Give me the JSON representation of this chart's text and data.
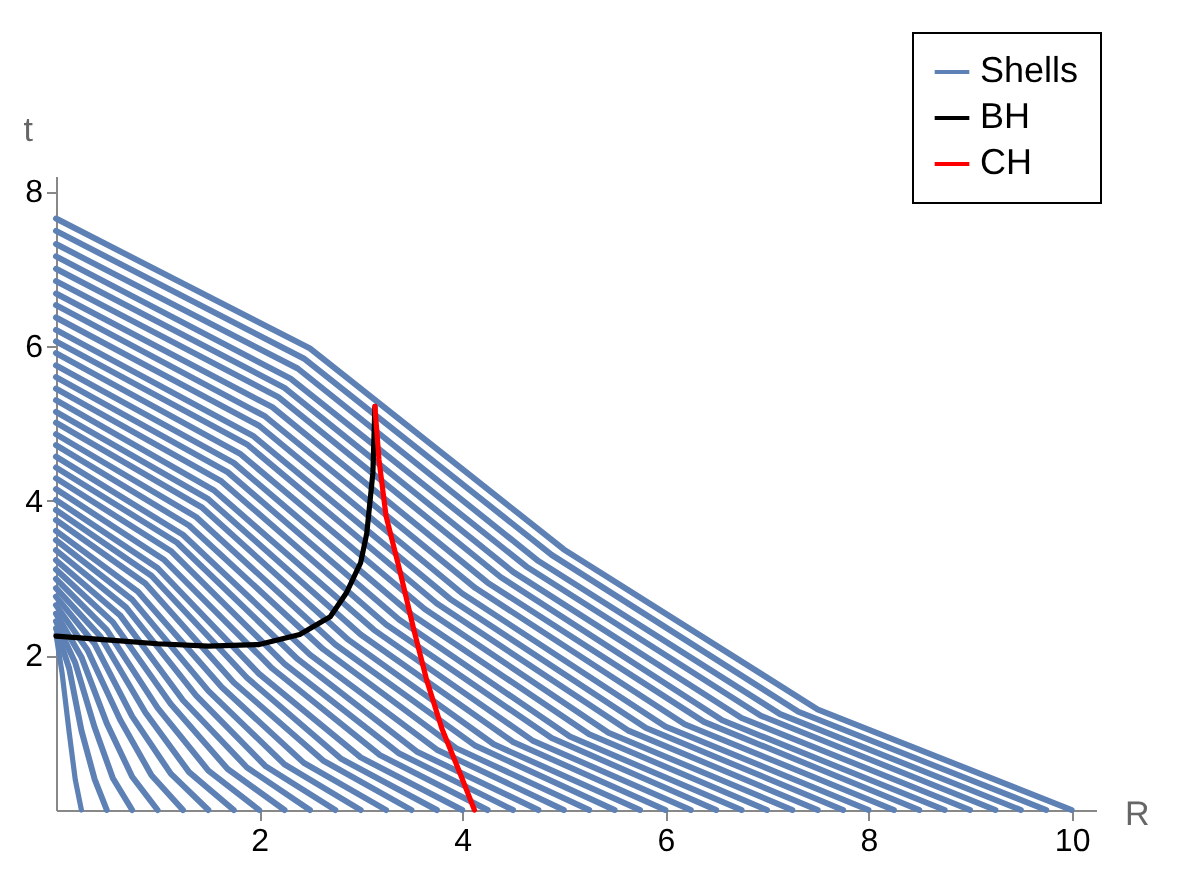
{
  "chart_data": {
    "type": "line",
    "xlabel": "R",
    "ylabel": "t",
    "xlim": [
      0,
      10.24
    ],
    "ylim": [
      0,
      8.2
    ],
    "xticks": [
      2,
      4,
      6,
      8,
      10
    ],
    "yticks": [
      2,
      4,
      6,
      8
    ],
    "grid": false,
    "legend": "top right",
    "series": [
      {
        "name": "Shells",
        "color": "#5e81b5",
        "x": [
          0.25,
          0.19,
          0.13,
          0.06,
          0
        ],
        "values": [
          0,
          0.39,
          1.0,
          1.77,
          2.27
        ]
      },
      {
        "color": "#5e81b5",
        "x": [
          0.5,
          0.38,
          0.25,
          0.13,
          0
        ],
        "values": [
          0,
          0.4,
          1.03,
          1.83,
          2.35
        ]
      },
      {
        "color": "#5e81b5",
        "x": [
          0.75,
          0.56,
          0.38,
          0.19,
          0
        ],
        "values": [
          0,
          0.41,
          1.07,
          1.9,
          2.44
        ]
      },
      {
        "color": "#5e81b5",
        "x": [
          1,
          0.75,
          0.5,
          0.25,
          0
        ],
        "values": [
          0,
          0.43,
          1.12,
          1.98,
          2.54
        ]
      },
      {
        "color": "#5e81b5",
        "x": [
          1.25,
          0.94,
          0.63,
          0.31,
          0
        ],
        "values": [
          0,
          0.45,
          1.17,
          2.07,
          2.65
        ]
      },
      {
        "color": "#5e81b5",
        "x": [
          1.5,
          1.13,
          0.75,
          0.38,
          0
        ],
        "values": [
          0,
          0.47,
          1.21,
          2.15,
          2.76
        ]
      },
      {
        "color": "#5e81b5",
        "x": [
          1.75,
          1.31,
          0.88,
          0.44,
          0
        ],
        "values": [
          0,
          0.49,
          1.26,
          2.24,
          2.87
        ]
      },
      {
        "color": "#5e81b5",
        "x": [
          2,
          1.5,
          1,
          0.5,
          0
        ],
        "values": [
          0,
          0.51,
          1.32,
          2.33,
          2.99
        ]
      },
      {
        "color": "#5e81b5",
        "x": [
          2.25,
          1.69,
          1.13,
          0.56,
          0
        ],
        "values": [
          0,
          0.53,
          1.37,
          2.43,
          3.11
        ]
      },
      {
        "color": "#5e81b5",
        "x": [
          2.5,
          1.88,
          1.25,
          0.63,
          0
        ],
        "values": [
          0,
          0.55,
          1.42,
          2.52,
          3.23
        ]
      },
      {
        "color": "#5e81b5",
        "x": [
          2.75,
          2.06,
          1.38,
          0.69,
          0
        ],
        "values": [
          0,
          0.57,
          1.48,
          2.62,
          3.36
        ]
      },
      {
        "color": "#5e81b5",
        "x": [
          3,
          2.25,
          1.5,
          0.75,
          0
        ],
        "values": [
          0,
          0.59,
          1.54,
          2.72,
          3.49
        ]
      },
      {
        "color": "#5e81b5",
        "x": [
          3.25,
          2.44,
          1.63,
          0.81,
          0
        ],
        "values": [
          0,
          0.61,
          1.59,
          2.82,
          3.61
        ]
      },
      {
        "color": "#5e81b5",
        "x": [
          3.5,
          2.63,
          1.75,
          0.88,
          0
        ],
        "values": [
          0,
          0.64,
          1.65,
          2.93,
          3.75
        ]
      },
      {
        "color": "#5e81b5",
        "x": [
          3.75,
          2.81,
          1.88,
          0.94,
          0
        ],
        "values": [
          0,
          0.66,
          1.71,
          3.03,
          3.88
        ]
      },
      {
        "color": "#5e81b5",
        "x": [
          4,
          3,
          2,
          1,
          0
        ],
        "values": [
          0,
          0.68,
          1.76,
          3.13,
          4.01
        ]
      },
      {
        "color": "#5e81b5",
        "x": [
          4.25,
          3.19,
          2.13,
          1.06,
          0
        ],
        "values": [
          0,
          0.71,
          1.83,
          3.24,
          4.15
        ]
      },
      {
        "color": "#5e81b5",
        "x": [
          4.5,
          3.38,
          2.25,
          1.13,
          0
        ],
        "values": [
          0,
          0.73,
          1.89,
          3.35,
          4.29
        ]
      },
      {
        "color": "#5e81b5",
        "x": [
          4.75,
          3.56,
          2.38,
          1.19,
          0
        ],
        "values": [
          0,
          0.75,
          1.95,
          3.46,
          4.43
        ]
      },
      {
        "color": "#5e81b5",
        "x": [
          5,
          3.75,
          2.5,
          1.25,
          0
        ],
        "values": [
          0,
          0.78,
          2.01,
          3.56,
          4.57
        ]
      },
      {
        "color": "#5e81b5",
        "x": [
          5.25,
          3.94,
          2.63,
          1.31,
          0
        ],
        "values": [
          0,
          0.8,
          2.08,
          3.68,
          4.72
        ]
      },
      {
        "color": "#5e81b5",
        "x": [
          5.5,
          4.13,
          2.75,
          1.38,
          0
        ],
        "values": [
          0,
          0.83,
          2.14,
          3.79,
          4.86
        ]
      },
      {
        "color": "#5e81b5",
        "x": [
          5.75,
          4.31,
          2.88,
          1.44,
          0
        ],
        "values": [
          0,
          0.85,
          2.2,
          3.91,
          5.01
        ]
      },
      {
        "color": "#5e81b5",
        "x": [
          6,
          4.5,
          3,
          1.5,
          0
        ],
        "values": [
          0,
          0.88,
          2.27,
          4.02,
          5.15
        ]
      },
      {
        "color": "#5e81b5",
        "x": [
          6.25,
          4.69,
          3.13,
          1.56,
          0
        ],
        "values": [
          0,
          0.9,
          2.33,
          4.13,
          5.3
        ]
      },
      {
        "color": "#5e81b5",
        "x": [
          6.5,
          4.88,
          3.25,
          1.63,
          0
        ],
        "values": [
          0,
          0.93,
          2.4,
          4.25,
          5.45
        ]
      },
      {
        "color": "#5e81b5",
        "x": [
          6.75,
          5.06,
          3.38,
          1.69,
          0
        ],
        "values": [
          0,
          0.95,
          2.46,
          4.37,
          5.6
        ]
      },
      {
        "color": "#5e81b5",
        "x": [
          7,
          5.25,
          3.5,
          1.75,
          0
        ],
        "values": [
          0,
          0.98,
          2.53,
          4.49,
          5.75
        ]
      },
      {
        "color": "#5e81b5",
        "x": [
          7.25,
          5.44,
          3.63,
          1.81,
          0
        ],
        "values": [
          0,
          1.0,
          2.6,
          4.61,
          5.91
        ]
      },
      {
        "color": "#5e81b5",
        "x": [
          7.5,
          5.63,
          3.75,
          1.88,
          0
        ],
        "values": [
          0,
          1.03,
          2.67,
          4.73,
          6.06
        ]
      },
      {
        "color": "#5e81b5",
        "x": [
          7.75,
          5.81,
          3.88,
          1.94,
          0
        ],
        "values": [
          0,
          1.06,
          2.73,
          4.84,
          6.21
        ]
      },
      {
        "color": "#5e81b5",
        "x": [
          8,
          6,
          4,
          2,
          0
        ],
        "values": [
          0,
          1.08,
          2.8,
          4.97,
          6.37
        ]
      },
      {
        "color": "#5e81b5",
        "x": [
          8.25,
          6.19,
          4.13,
          2.06,
          0
        ],
        "values": [
          0,
          1.11,
          2.87,
          5.09,
          6.53
        ]
      },
      {
        "color": "#5e81b5",
        "x": [
          8.5,
          6.38,
          4.25,
          2.13,
          0
        ],
        "values": [
          0,
          1.14,
          2.94,
          5.21,
          6.68
        ]
      },
      {
        "color": "#5e81b5",
        "x": [
          8.75,
          6.56,
          4.38,
          2.19,
          0
        ],
        "values": [
          0,
          1.16,
          3.01,
          5.34,
          6.84
        ]
      },
      {
        "color": "#5e81b5",
        "x": [
          9,
          6.75,
          4.5,
          2.25,
          0
        ],
        "values": [
          0,
          1.19,
          3.08,
          5.46,
          7.0
        ]
      },
      {
        "color": "#5e81b5",
        "x": [
          9.25,
          6.94,
          4.63,
          2.31,
          0
        ],
        "values": [
          0,
          1.22,
          3.15,
          5.58,
          7.16
        ]
      },
      {
        "color": "#5e81b5",
        "x": [
          9.5,
          7.13,
          4.75,
          2.38,
          0
        ],
        "values": [
          0,
          1.24,
          3.22,
          5.71,
          7.32
        ]
      },
      {
        "color": "#5e81b5",
        "x": [
          9.75,
          7.31,
          4.88,
          2.44,
          0
        ],
        "values": [
          0,
          1.27,
          3.3,
          5.84,
          7.49
        ]
      },
      {
        "color": "#5e81b5",
        "x": [
          10,
          7.5,
          5,
          2.5,
          0
        ],
        "values": [
          0,
          1.3,
          3.37,
          5.97,
          7.65
        ]
      },
      {
        "name": "BH",
        "color": "#000000",
        "x": [
          0,
          0.5,
          1,
          1.5,
          2,
          2.4,
          2.7,
          2.86,
          3.0,
          3.06,
          3.12,
          3.14
        ],
        "values": [
          2.25,
          2.2,
          2.15,
          2.12,
          2.14,
          2.27,
          2.5,
          2.81,
          3.2,
          3.58,
          4.36,
          5.22
        ]
      },
      {
        "name": "CH",
        "color": "#ff0000",
        "x": [
          3.14,
          3.18,
          3.25,
          3.39,
          3.52,
          3.65,
          3.8,
          3.98,
          4.12
        ],
        "values": [
          5.22,
          4.53,
          3.8,
          3.07,
          2.35,
          1.68,
          1.05,
          0.47,
          0
        ]
      }
    ]
  }
}
